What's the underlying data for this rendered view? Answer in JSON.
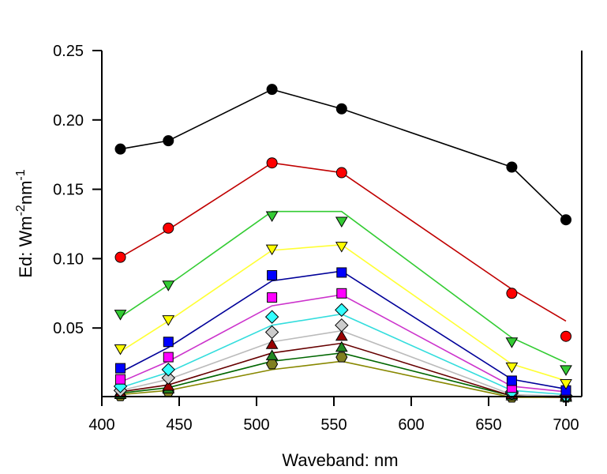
{
  "chart_data": {
    "type": "line",
    "title": "",
    "xlabel": "Waveband: nm",
    "ylabel_parts": [
      {
        "text": "Ed: Wm",
        "sup": false
      },
      {
        "text": "-2",
        "sup": true
      },
      {
        "text": "nm",
        "sup": false
      },
      {
        "text": "-1",
        "sup": true
      }
    ],
    "ylabel": "Ed: Wm-2nm-1",
    "xlim": [
      400,
      710
    ],
    "ylim": [
      0,
      0.25
    ],
    "xticks": [
      400,
      450,
      500,
      550,
      600,
      650,
      700
    ],
    "xtick_labels": [
      "400",
      "450",
      "500",
      "550",
      "600",
      "650",
      "700"
    ],
    "yticks": [
      0.05,
      0.1,
      0.15,
      0.2,
      0.25
    ],
    "ytick_labels": [
      "0.05",
      "0.10",
      "0.15",
      "0.20",
      "0.25"
    ],
    "grid": false,
    "legend": "none",
    "x": [
      412,
      443,
      510,
      555,
      665,
      700
    ],
    "series": [
      {
        "name": "series-1",
        "color": "#000000",
        "marker": "circle",
        "marker_fill": "#000000",
        "values": [
          0.179,
          0.185,
          0.222,
          0.208,
          0.166,
          0.128
        ],
        "fit": [
          0.179,
          0.185,
          0.222,
          0.208,
          0.166,
          0.128
        ]
      },
      {
        "name": "series-2",
        "color": "#c00000",
        "marker": "circle",
        "marker_fill": "#ff0000",
        "values": [
          0.101,
          0.122,
          0.169,
          0.162,
          0.075,
          0.044
        ],
        "fit": [
          0.101,
          0.121,
          0.169,
          0.162,
          0.078,
          0.055
        ]
      },
      {
        "name": "series-3",
        "color": "#33cc33",
        "marker": "triangle-down",
        "marker_fill": "#33cc33",
        "values": [
          0.06,
          0.081,
          0.131,
          0.127,
          0.04,
          0.02
        ],
        "fit": [
          0.058,
          0.081,
          0.134,
          0.134,
          0.043,
          0.025
        ]
      },
      {
        "name": "series-4",
        "color": "#ffff33",
        "marker": "triangle-down",
        "marker_fill": "#ffff00",
        "values": [
          0.035,
          0.056,
          0.107,
          0.109,
          0.022,
          0.01
        ],
        "fit": [
          0.033,
          0.055,
          0.106,
          0.11,
          0.024,
          0.012
        ]
      },
      {
        "name": "series-5",
        "color": "#000099",
        "marker": "square",
        "marker_fill": "#0000ff",
        "values": [
          0.021,
          0.04,
          0.088,
          0.09,
          0.012,
          0.005
        ],
        "fit": [
          0.018,
          0.036,
          0.084,
          0.091,
          0.013,
          0.006
        ]
      },
      {
        "name": "series-6",
        "color": "#cc33cc",
        "marker": "square",
        "marker_fill": "#ff00ff",
        "values": [
          0.013,
          0.029,
          0.072,
          0.075,
          0.007,
          0.003
        ],
        "fit": [
          0.011,
          0.026,
          0.066,
          0.074,
          0.008,
          0.004
        ]
      },
      {
        "name": "series-7",
        "color": "#33dddd",
        "marker": "diamond",
        "marker_fill": "#33ffff",
        "values": [
          0.008,
          0.02,
          0.058,
          0.063,
          0.004,
          0.001
        ],
        "fit": [
          0.007,
          0.018,
          0.052,
          0.06,
          0.005,
          0.002
        ]
      },
      {
        "name": "series-8",
        "color": "#bbbbbb",
        "marker": "diamond",
        "marker_fill": "#cccccc",
        "values": [
          0.005,
          0.014,
          0.047,
          0.052,
          0.003,
          0.001
        ],
        "fit": [
          0.005,
          0.013,
          0.04,
          0.048,
          0.002,
          0.001
        ]
      },
      {
        "name": "series-9",
        "color": "#660000",
        "marker": "triangle-up",
        "marker_fill": "#990000",
        "values": [
          0.003,
          0.008,
          0.038,
          0.044,
          0.002,
          0.001
        ],
        "fit": [
          0.004,
          0.009,
          0.032,
          0.039,
          0.001,
          0.0
        ]
      },
      {
        "name": "series-10",
        "color": "#006600",
        "marker": "triangle-up",
        "marker_fill": "#228822",
        "values": [
          0.002,
          0.006,
          0.03,
          0.036,
          0.001,
          0.0
        ],
        "fit": [
          0.003,
          0.007,
          0.026,
          0.032,
          0.001,
          0.0
        ]
      },
      {
        "name": "series-11",
        "color": "#888800",
        "marker": "hexagon",
        "marker_fill": "#808020",
        "values": [
          0.001,
          0.004,
          0.024,
          0.029,
          0.0,
          0.0
        ],
        "fit": [
          0.002,
          0.005,
          0.02,
          0.026,
          0.0,
          0.0
        ]
      }
    ]
  }
}
